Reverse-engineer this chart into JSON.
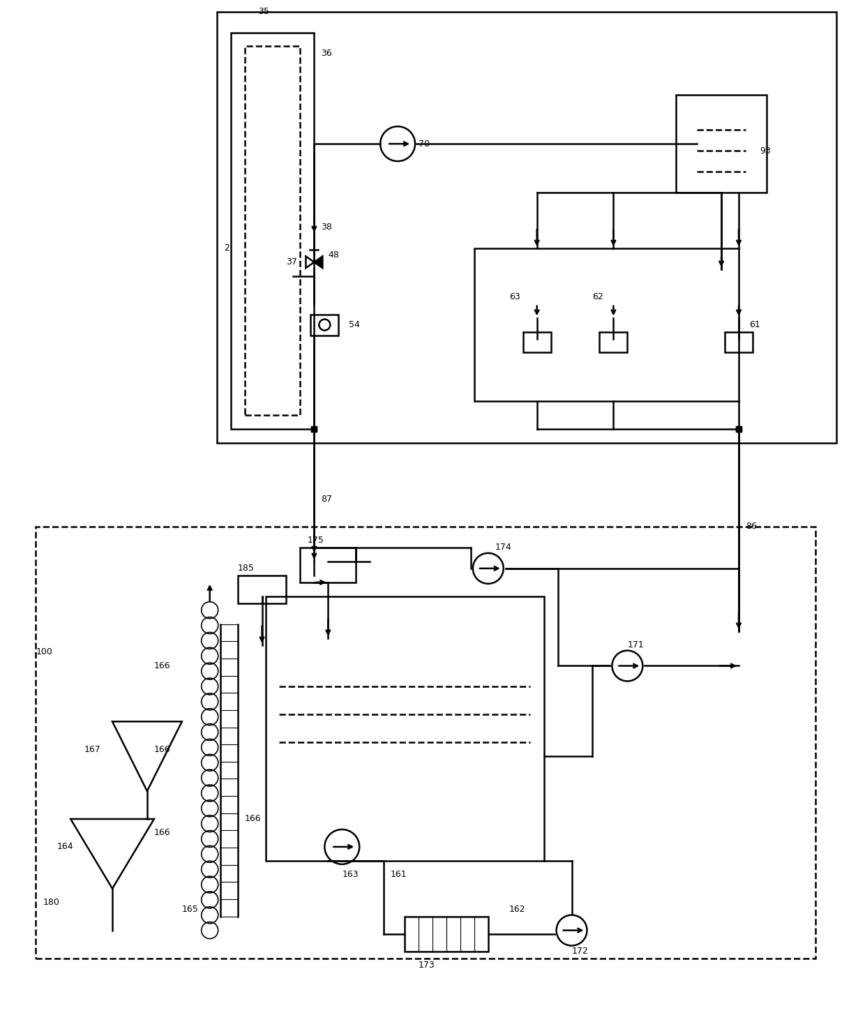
{
  "bg_color": "#ffffff",
  "line_color": "#000000",
  "lw": 1.8,
  "fig_width": 12.4,
  "fig_height": 14.55
}
